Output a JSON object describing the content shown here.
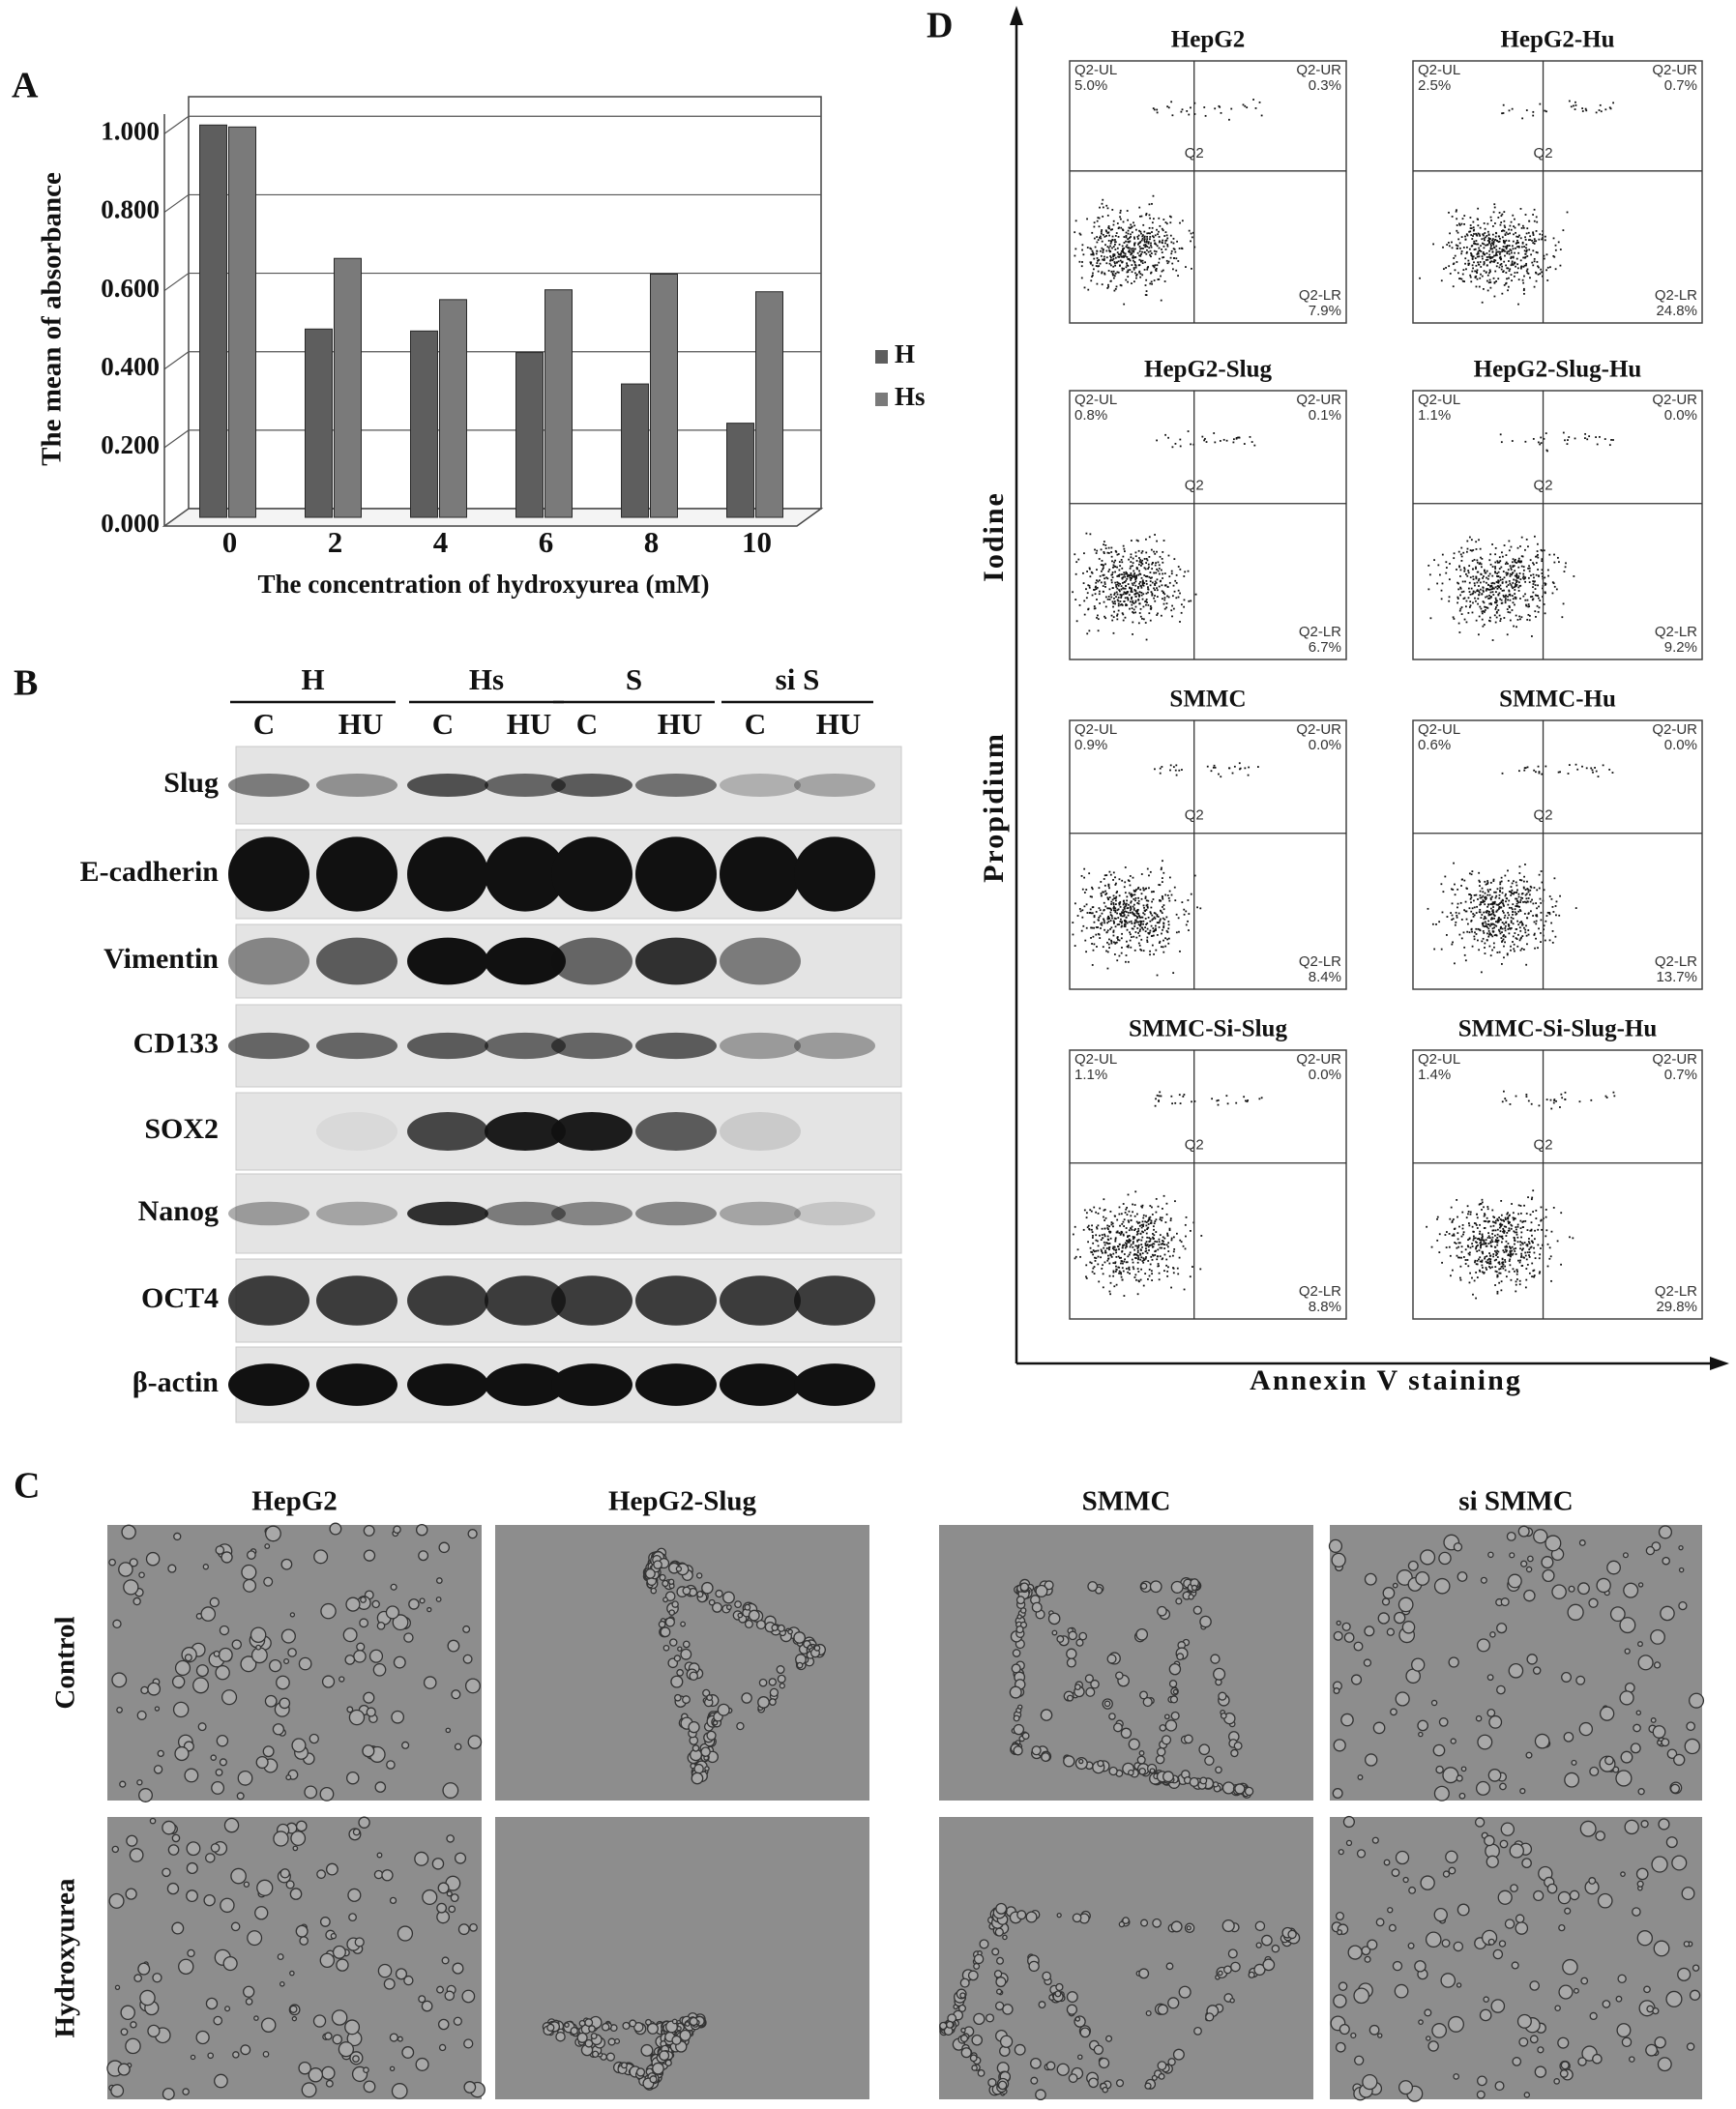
{
  "chart_data": {
    "type": "bar",
    "panel": "A",
    "y_label": "The mean of absorbance",
    "x_label": "The concentration of hydroxyurea (mM)",
    "categories": [
      "0",
      "2",
      "4",
      "6",
      "8",
      "10"
    ],
    "series": [
      {
        "name": "H",
        "color": "#5e5e5e",
        "values": [
          1.0,
          0.48,
          0.475,
          0.42,
          0.34,
          0.24
        ]
      },
      {
        "name": "Hs",
        "color": "#7a7a7a",
        "values": [
          0.995,
          0.66,
          0.555,
          0.58,
          0.62,
          0.575
        ]
      }
    ],
    "ylim": [
      0,
      1.05
    ],
    "yticks": [
      {
        "value": 0,
        "label": "0.000"
      },
      {
        "value": 0.2,
        "label": "0.200"
      },
      {
        "value": 0.4,
        "label": "0.400"
      },
      {
        "value": 0.6,
        "label": "0.600"
      },
      {
        "value": 0.8,
        "label": "0.800"
      },
      {
        "value": 1,
        "label": "1.000"
      }
    ],
    "grid": true,
    "legend": "right"
  },
  "western_blot": {
    "panel": "B",
    "groups": [
      {
        "name": "H",
        "lanes": [
          "C",
          "HU"
        ]
      },
      {
        "name": "Hs",
        "lanes": [
          "C",
          "HU"
        ]
      },
      {
        "name": "S",
        "lanes": [
          "C",
          "HU"
        ]
      },
      {
        "name": "si S",
        "lanes": [
          "C",
          "HU"
        ]
      }
    ],
    "proteins": [
      "Slug",
      "E-cadherin",
      "Vimentin",
      "CD133",
      "SOX2",
      "Nanog",
      "OCT4",
      "β-actin"
    ]
  },
  "micrographs": {
    "panel": "C",
    "columns": [
      "HepG2",
      "HepG2-Slug",
      "SMMC",
      "si SMMC"
    ],
    "rows": [
      "Control",
      "Hydroxyurea"
    ]
  },
  "flow_cytometry": {
    "panel": "D",
    "y_label": [
      "Propidium",
      "Iodine"
    ],
    "x_label": "Annexin V staining",
    "plots": [
      {
        "title": "HepG2",
        "ul": {
          "label": "Q2-UL",
          "value": "5.0%"
        },
        "ur": {
          "label": "Q2-UR",
          "value": "0.3%"
        },
        "center": "Q2",
        "lr": {
          "label": "Q2-LR",
          "value": "7.9%"
        }
      },
      {
        "title": "HepG2-Hu",
        "ul": {
          "label": "Q2-UL",
          "value": "2.5%"
        },
        "ur": {
          "label": "Q2-UR",
          "value": "0.7%"
        },
        "center": "Q2",
        "lr": {
          "label": "Q2-LR",
          "value": "24.8%"
        }
      },
      {
        "title": "HepG2-Slug",
        "ul": {
          "label": "Q2-UL",
          "value": "0.8%"
        },
        "ur": {
          "label": "Q2-UR",
          "value": "0.1%"
        },
        "center": "Q2",
        "lr": {
          "label": "Q2-LR",
          "value": "6.7%"
        }
      },
      {
        "title": "HepG2-Slug-Hu",
        "ul": {
          "label": "Q2-UL",
          "value": "1.1%"
        },
        "ur": {
          "label": "Q2-UR",
          "value": "0.0%"
        },
        "center": "Q2",
        "lr": {
          "label": "Q2-LR",
          "value": "9.2%"
        }
      },
      {
        "title": "SMMC",
        "ul": {
          "label": "Q2-UL",
          "value": "0.9%"
        },
        "ur": {
          "label": "Q2-UR",
          "value": "0.0%"
        },
        "center": "Q2",
        "lr": {
          "label": "Q2-LR",
          "value": "8.4%"
        }
      },
      {
        "title": "SMMC-Hu",
        "ul": {
          "label": "Q2-UL",
          "value": "0.6%"
        },
        "ur": {
          "label": "Q2-UR",
          "value": "0.0%"
        },
        "center": "Q2",
        "lr": {
          "label": "Q2-LR",
          "value": "13.7%"
        }
      },
      {
        "title": "SMMC-Si-Slug",
        "ul": {
          "label": "Q2-UL",
          "value": "1.1%"
        },
        "ur": {
          "label": "Q2-UR",
          "value": "0.0%"
        },
        "center": "Q2",
        "lr": {
          "label": "Q2-LR",
          "value": "8.8%"
        }
      },
      {
        "title": "SMMC-Si-Slug-Hu",
        "ul": {
          "label": "Q2-UL",
          "value": "1.4%"
        },
        "ur": {
          "label": "Q2-UR",
          "value": "0.7%"
        },
        "center": "Q2",
        "lr": {
          "label": "Q2-LR",
          "value": "29.8%"
        }
      }
    ]
  }
}
